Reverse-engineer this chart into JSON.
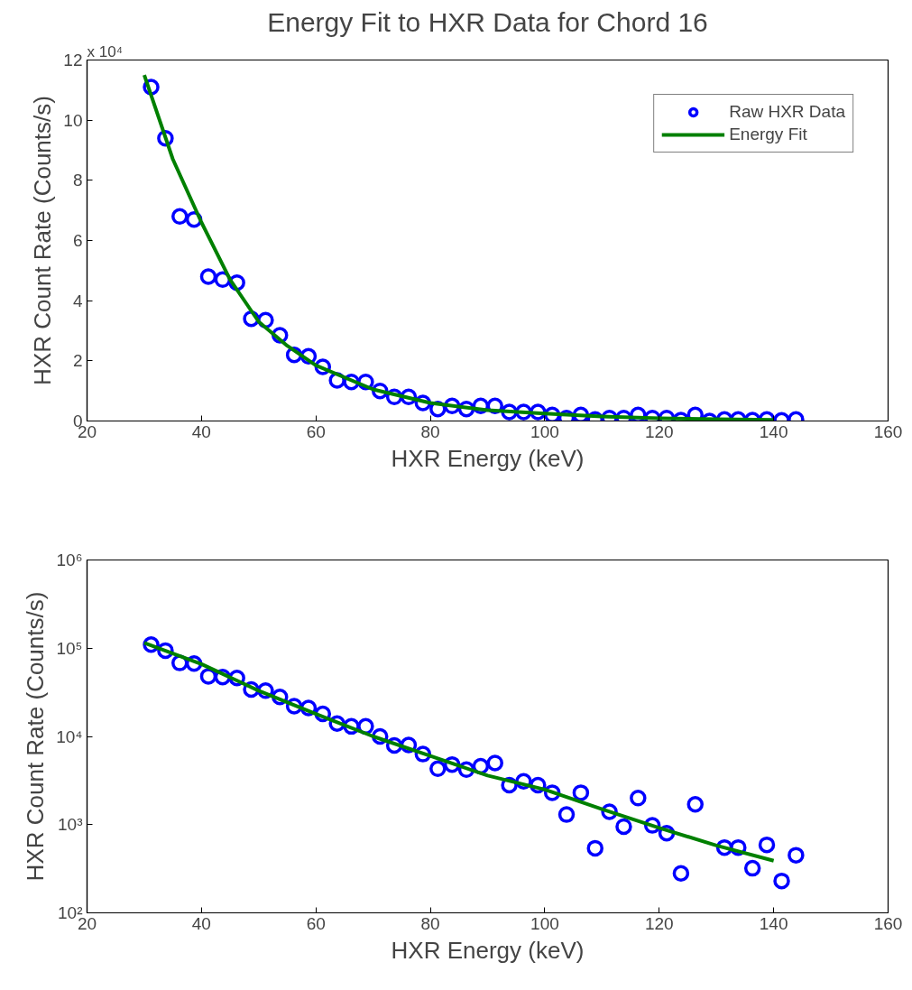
{
  "chart_data": [
    {
      "type": "scatter",
      "title": "Energy Fit to HXR Data for Chord 16",
      "xlabel": "HXR Energy (keV)",
      "ylabel": "HXR Count Rate (Counts/s)",
      "annotations": [
        "x 10⁴"
      ],
      "xlim": [
        20,
        160
      ],
      "xticks": [
        20,
        40,
        60,
        80,
        100,
        120,
        140,
        160
      ],
      "ylim": [
        0,
        12
      ],
      "yticks": [
        0,
        2,
        4,
        6,
        8,
        10,
        12
      ],
      "grid": false,
      "legend": "top right",
      "series": [
        {
          "name": "Raw HXR Data",
          "marker": "circle",
          "color": "#0000ff",
          "x": [
            31.2,
            33.7,
            36.2,
            38.7,
            41.2,
            43.7,
            46.2,
            48.7,
            51.2,
            53.7,
            56.2,
            58.7,
            61.2,
            63.7,
            66.2,
            68.7,
            71.2,
            73.7,
            76.2,
            78.7,
            81.3,
            83.8,
            86.3,
            88.8,
            91.3,
            93.8,
            96.3,
            98.8,
            101.3,
            103.8,
            106.3,
            108.8,
            111.3,
            113.8,
            116.3,
            118.8,
            121.3,
            123.8,
            126.3,
            128.8,
            131.4,
            133.8,
            136.3,
            138.8,
            141.4,
            143.9
          ],
          "values": [
            11.1,
            9.4,
            6.8,
            6.7,
            4.8,
            4.7,
            4.6,
            3.4,
            3.35,
            2.85,
            2.2,
            2.15,
            1.8,
            1.35,
            1.3,
            1.3,
            1.0,
            0.8,
            0.8,
            0.6,
            0.4,
            0.5,
            0.4,
            0.5,
            0.5,
            0.3,
            0.3,
            0.3,
            0.2,
            0.1,
            0.2,
            0.05,
            0.1,
            0.1,
            0.2,
            0.1,
            0.1,
            0.03,
            0.2,
            0,
            0.05,
            0.05,
            0.03,
            0.05,
            0.02,
            0.05
          ]
        },
        {
          "name": "Energy Fit",
          "type": "line",
          "color": "#008000",
          "x": [
            30,
            35,
            40,
            45,
            50,
            55,
            60,
            70,
            80,
            90,
            100,
            110,
            120,
            130,
            140
          ],
          "values": [
            11.5,
            8.7,
            6.6,
            4.7,
            3.3,
            2.5,
            1.85,
            1.05,
            0.6,
            0.36,
            0.25,
            0.15,
            0.09,
            0.06,
            0.04
          ]
        }
      ]
    },
    {
      "type": "scatter",
      "xlabel": "HXR Energy (keV)",
      "ylabel": "HXR Count Rate (Counts/s)",
      "log": true,
      "xlim": [
        20,
        160
      ],
      "xticks": [
        20,
        40,
        60,
        80,
        100,
        120,
        140,
        160
      ],
      "ylim": [
        100,
        1000000
      ],
      "yticks": [
        {
          "value": 100,
          "label": "10²"
        },
        {
          "value": 1000,
          "label": "10³"
        },
        {
          "value": 10000,
          "label": "10⁴"
        },
        {
          "value": 100000,
          "label": "10⁵"
        },
        {
          "value": 1000000,
          "label": "10⁶"
        }
      ],
      "grid": false,
      "series": [
        {
          "marker": "circle",
          "color": "#0000ff",
          "x": [
            31.2,
            33.7,
            36.2,
            38.7,
            41.2,
            43.7,
            46.2,
            48.7,
            51.2,
            53.7,
            56.2,
            58.7,
            61.2,
            63.7,
            66.2,
            68.7,
            71.2,
            73.7,
            76.2,
            78.7,
            81.3,
            83.8,
            86.3,
            88.8,
            91.3,
            93.8,
            96.3,
            98.8,
            101.3,
            103.8,
            106.3,
            108.8,
            111.3,
            113.8,
            116.3,
            118.8,
            121.3,
            123.8,
            126.3,
            131.4,
            133.8,
            136.3,
            138.8,
            141.4,
            143.9
          ],
          "values": [
            110000,
            94000,
            68000,
            67000,
            48000,
            47000,
            46000,
            34000,
            33000,
            28000,
            22000,
            21000,
            18000,
            14000,
            13000,
            13000,
            10000,
            7900,
            8000,
            6300,
            4300,
            4800,
            4200,
            4600,
            5000,
            2800,
            3100,
            2800,
            2300,
            1300,
            2300,
            540,
            1400,
            950,
            2000,
            980,
            800,
            280,
            1700,
            550,
            550,
            320,
            590,
            230,
            450
          ]
        },
        {
          "type": "line",
          "color": "#008000",
          "x": [
            30,
            40,
            50,
            60,
            70,
            80,
            90,
            100,
            110,
            120,
            130,
            140
          ],
          "values": [
            115000,
            66000,
            33000,
            18000,
            10000,
            6000,
            3600,
            2500,
            1500,
            920,
            580,
            390
          ]
        }
      ]
    }
  ]
}
